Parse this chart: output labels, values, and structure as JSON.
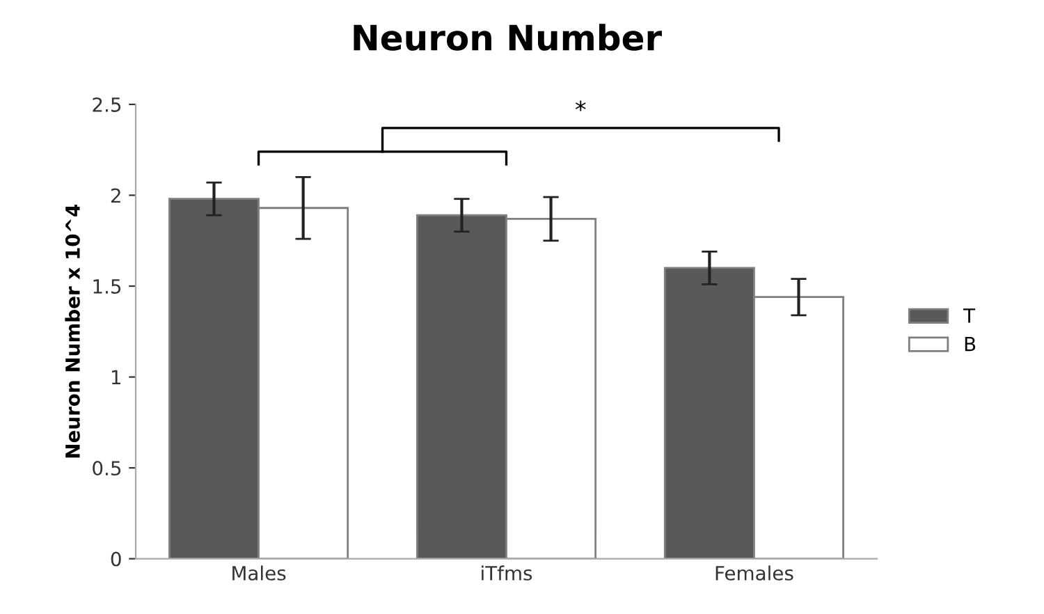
{
  "chart_data": {
    "type": "bar",
    "title": "Neuron Number",
    "ylabel": "Neuron Number x 10^4",
    "categories": [
      "Males",
      "iTfms",
      "Females"
    ],
    "series": [
      {
        "name": "T",
        "color": "#595959",
        "values": [
          1.98,
          1.89,
          1.6
        ],
        "errors": [
          0.09,
          0.09,
          0.09
        ]
      },
      {
        "name": "B",
        "color": "#ffffff",
        "values": [
          1.93,
          1.87,
          1.44
        ],
        "errors": [
          0.17,
          0.12,
          0.1
        ]
      }
    ],
    "ylim": [
      0,
      2.5
    ],
    "yticks": [
      0,
      0.5,
      1,
      1.5,
      2,
      2.5
    ],
    "grid": false,
    "legend": "right",
    "annotations": [
      "*"
    ]
  }
}
